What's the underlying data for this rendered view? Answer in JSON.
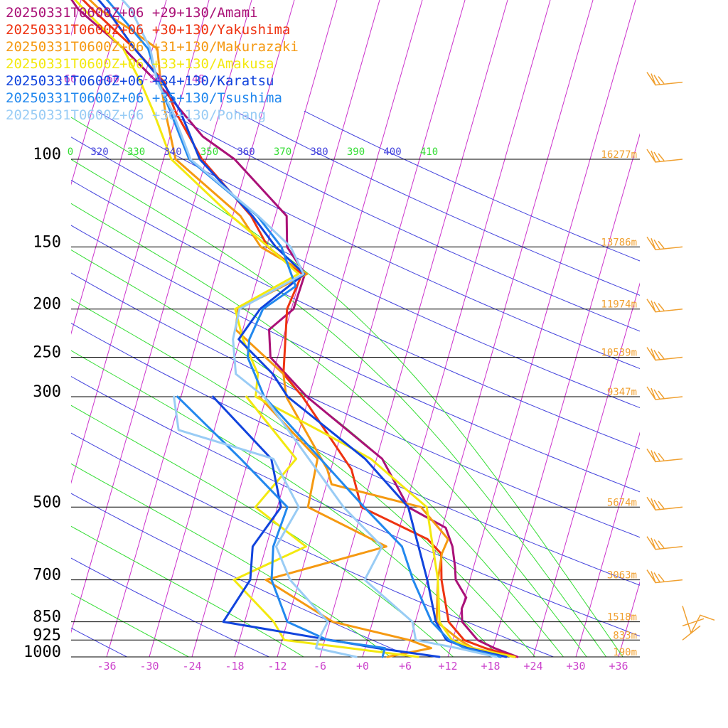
{
  "colors": {
    "isobar": "#000000",
    "isotherm": "#cc33cc",
    "isotherm_label": "#cc44cc",
    "dry_adiabat": "#4444dd",
    "moist_adiabat": "#33dd33",
    "height_label": "#f0a030",
    "wind_barb": "#f0a030"
  },
  "chart_data": {
    "type": "line",
    "title": "",
    "xlabel": "",
    "ylabel": "",
    "x_axis": {
      "unit": "degC",
      "skewed": true,
      "range": [
        -40,
        40
      ],
      "tick_labels": [
        "-36",
        "-30",
        "-24",
        "-18",
        "-12",
        "-6",
        "+0",
        "+6",
        "+12",
        "+18",
        "+24",
        "+30",
        "+36"
      ],
      "tick_values": [
        -36,
        -30,
        -24,
        -18,
        -12,
        -6,
        0,
        6,
        12,
        18,
        24,
        30,
        36
      ]
    },
    "y_axis": {
      "unit": "hPa",
      "scale": "log",
      "range": [
        1000,
        100
      ],
      "tick_labels": [
        "100",
        "150",
        "200",
        "250",
        "300",
        "500",
        "700",
        "850",
        "925",
        "1000"
      ],
      "tick_values": [
        100,
        150,
        200,
        250,
        300,
        500,
        700,
        850,
        925,
        1000
      ]
    },
    "upper_isotherm_labels": [
      "-66",
      "-60",
      "-54",
      "-48"
    ],
    "theta_labels": [
      "0",
      "320",
      "330",
      "340",
      "350",
      "360",
      "370",
      "380",
      "390",
      "400",
      "410"
    ],
    "height_labels": [
      {
        "p": 100,
        "text": "16277m"
      },
      {
        "p": 150,
        "text": "13786m"
      },
      {
        "p": 200,
        "text": "11974m"
      },
      {
        "p": 250,
        "text": "10539m"
      },
      {
        "p": 300,
        "text": "9347m"
      },
      {
        "p": 500,
        "text": "5674m"
      },
      {
        "p": 700,
        "text": "3063m"
      },
      {
        "p": 850,
        "text": "1518m"
      },
      {
        "p": 925,
        "text": "833m"
      },
      {
        "p": 1000,
        "text": "190m"
      }
    ],
    "legend": [
      "20250331T0600Z+06 +29+130/Amami",
      "20250331T0600Z+06 +30+130/Yakushima",
      "20250331T0600Z+06 +31+130/Makurazaki",
      "20250331T0600Z+06 +33+130/Amakusa",
      "20250331T0600Z+06 +34+130/Karatsu",
      "20250331T0600Z+06 +35+130/Tsushima",
      "20250331T0600Z+06 +36+130/Pohang"
    ],
    "series": [
      {
        "name": "Amami",
        "color": "#aa1177",
        "temperature": [
          [
            1000,
            21.8
          ],
          [
            960,
            18.2
          ],
          [
            925,
            15.5
          ],
          [
            850,
            12.6
          ],
          [
            800,
            12.0
          ],
          [
            760,
            12.2
          ],
          [
            700,
            10.0
          ],
          [
            660,
            9.4
          ],
          [
            600,
            8.2
          ],
          [
            550,
            6.5
          ],
          [
            500,
            0.4
          ],
          [
            400,
            -5.2
          ],
          [
            300,
            -18.3
          ],
          [
            250,
            -25.0
          ],
          [
            220,
            -26.3
          ],
          [
            200,
            -23.7
          ],
          [
            170,
            -23.5
          ],
          [
            150,
            -27.1
          ],
          [
            130,
            -28.4
          ],
          [
            100,
            -38.0
          ],
          [
            90,
            -43.4
          ],
          [
            70,
            -52.0
          ],
          [
            60,
            -58.0
          ],
          [
            50,
            -66.0
          ],
          [
            40,
            -72.6
          ],
          [
            30,
            -78.5
          ]
        ]
      },
      {
        "name": "Yakushima",
        "color": "#ee3311",
        "temperature": [
          [
            1000,
            21.5
          ],
          [
            960,
            16.9
          ],
          [
            925,
            13.6
          ],
          [
            850,
            10.7
          ],
          [
            700,
            8.0
          ],
          [
            620,
            6.9
          ],
          [
            580,
            4.4
          ],
          [
            500,
            -6.2
          ],
          [
            420,
            -9.1
          ],
          [
            300,
            -18.9
          ],
          [
            270,
            -22.5
          ],
          [
            200,
            -24.6
          ],
          [
            170,
            -23.9
          ],
          [
            150,
            -29.8
          ],
          [
            130,
            -33.4
          ],
          [
            100,
            -42.6
          ],
          [
            80,
            -48.3
          ],
          [
            70,
            -51.0
          ],
          [
            60,
            -56.5
          ],
          [
            50,
            -64.0
          ],
          [
            40,
            -72.7
          ],
          [
            30,
            -78.5
          ]
        ]
      },
      {
        "name": "Makurazaki",
        "color": "#f59911",
        "temperature": [
          [
            1000,
            21.3
          ],
          [
            960,
            15.2
          ],
          [
            925,
            13.0
          ],
          [
            850,
            9.0
          ],
          [
            700,
            7.5
          ],
          [
            620,
            7.0
          ],
          [
            580,
            7.3
          ],
          [
            500,
            2.2
          ],
          [
            450,
            -11.3
          ],
          [
            420,
            -12.5
          ],
          [
            300,
            -21.2
          ],
          [
            270,
            -22.5
          ],
          [
            220,
            -31.0
          ],
          [
            200,
            -31.5
          ],
          [
            170,
            -23.2
          ],
          [
            150,
            -30.8
          ],
          [
            130,
            -34.9
          ],
          [
            100,
            -46.3
          ],
          [
            80,
            -49.7
          ],
          [
            70,
            -51.5
          ],
          [
            60,
            -53.3
          ],
          [
            55,
            -57.7
          ],
          [
            50,
            -63.0
          ],
          [
            40,
            -72.0
          ],
          [
            30,
            -78.0
          ]
        ]
      },
      {
        "name": "Amakusa",
        "color": "#f3e90f",
        "temperature": [
          [
            1000,
            21.4
          ],
          [
            960,
            15.0
          ],
          [
            925,
            11.9
          ],
          [
            850,
            9.4
          ],
          [
            700,
            7.5
          ],
          [
            500,
            3.0
          ],
          [
            400,
            -6.8
          ],
          [
            360,
            -13.5
          ],
          [
            300,
            -25.5
          ],
          [
            270,
            -26.1
          ],
          [
            230,
            -29.6
          ],
          [
            200,
            -31.9
          ],
          [
            170,
            -24.4
          ],
          [
            150,
            -29.7
          ],
          [
            130,
            -36.2
          ],
          [
            100,
            -46.9
          ],
          [
            80,
            -51.4
          ],
          [
            70,
            -54.3
          ],
          [
            60,
            -58.1
          ],
          [
            50,
            -65.2
          ],
          [
            40,
            -73.4
          ],
          [
            30,
            -78.5
          ]
        ]
      },
      {
        "name": "Karatsu",
        "color": "#1144dd",
        "temperature": [
          [
            1000,
            20.2
          ],
          [
            960,
            14.4
          ],
          [
            925,
            11.1
          ],
          [
            850,
            8.9
          ],
          [
            700,
            6.0
          ],
          [
            500,
            0.4
          ],
          [
            400,
            -7.6
          ],
          [
            300,
            -21.0
          ],
          [
            270,
            -24.0
          ],
          [
            230,
            -30.2
          ],
          [
            200,
            -28.4
          ],
          [
            170,
            -23.6
          ],
          [
            150,
            -28.7
          ],
          [
            130,
            -33.2
          ],
          [
            100,
            -42.9
          ],
          [
            80,
            -47.6
          ],
          [
            70,
            -51.2
          ],
          [
            60,
            -56.5
          ],
          [
            50,
            -62.0
          ],
          [
            40,
            -69.7
          ],
          [
            30,
            -78.0
          ]
        ]
      },
      {
        "name": "Tsushima",
        "color": "#2288ee",
        "temperature": [
          [
            1000,
            19.4
          ],
          [
            960,
            14.0
          ],
          [
            925,
            11.5
          ],
          [
            850,
            8.3
          ],
          [
            700,
            4.0
          ],
          [
            600,
            1.1
          ],
          [
            500,
            -5.8
          ],
          [
            300,
            -24.3
          ],
          [
            250,
            -28.2
          ],
          [
            230,
            -28.7
          ],
          [
            200,
            -28.0
          ],
          [
            180,
            -24.3
          ],
          [
            150,
            -27.9
          ],
          [
            130,
            -32.5
          ],
          [
            100,
            -44.4
          ],
          [
            80,
            -49.0
          ],
          [
            70,
            -51.8
          ],
          [
            60,
            -54.6
          ],
          [
            50,
            -60.8
          ],
          [
            40,
            -68.6
          ],
          [
            30,
            -78.5
          ]
        ]
      },
      {
        "name": "Pohang",
        "color": "#99ccf5",
        "temperature": [
          [
            1000,
            18.8
          ],
          [
            960,
            13.0
          ],
          [
            925,
            6.8
          ],
          [
            850,
            5.6
          ],
          [
            700,
            -2.8
          ],
          [
            600,
            -1.7
          ],
          [
            500,
            -8.7
          ],
          [
            300,
            -24.3
          ],
          [
            270,
            -29.2
          ],
          [
            230,
            -31.0
          ],
          [
            200,
            -31.3
          ],
          [
            170,
            -23.7
          ],
          [
            150,
            -26.6
          ],
          [
            130,
            -32.4
          ],
          [
            100,
            -44.2
          ],
          [
            80,
            -48.7
          ],
          [
            70,
            -52.0
          ],
          [
            60,
            -54.3
          ],
          [
            50,
            -58.6
          ],
          [
            40,
            -66.5
          ],
          [
            30,
            -75.4
          ]
        ]
      }
    ],
    "dewpoint_series": [
      {
        "name": "Amami",
        "color": "#aa1177",
        "dewpoint": []
      },
      {
        "name": "Yakushima",
        "color": "#ee3311",
        "dewpoint": []
      },
      {
        "name": "Makurazaki",
        "color": "#f59911",
        "dewpoint": [
          [
            1000,
            3.5
          ],
          [
            960,
            9.3
          ],
          [
            925,
            5.9
          ],
          [
            850,
            -5.6
          ],
          [
            700,
            -16.7
          ],
          [
            600,
            -1.1
          ],
          [
            500,
            -13.7
          ],
          [
            400,
            -14.3
          ],
          [
            300,
            -25.0
          ]
        ]
      },
      {
        "name": "Amakusa",
        "color": "#f3e90f",
        "dewpoint": [
          [
            1000,
            7.8
          ],
          [
            960,
            -2.2
          ],
          [
            925,
            -11.7
          ],
          [
            850,
            -13.9
          ],
          [
            700,
            -21.2
          ],
          [
            600,
            -12.4
          ],
          [
            500,
            -21.1
          ],
          [
            400,
            -17.3
          ],
          [
            300,
            -26.8
          ]
        ]
      },
      {
        "name": "Karatsu",
        "color": "#1144dd",
        "dewpoint": [
          [
            1000,
            10.8
          ],
          [
            960,
            1.7
          ],
          [
            925,
            -5.2
          ],
          [
            850,
            -21.0
          ],
          [
            700,
            -18.9
          ],
          [
            600,
            -19.9
          ],
          [
            500,
            -17.5
          ],
          [
            400,
            -20.8
          ],
          [
            300,
            -31.5
          ]
        ]
      },
      {
        "name": "Tsushima",
        "color": "#2288ee",
        "dewpoint": [
          [
            1000,
            2.8
          ],
          [
            960,
            2.8
          ],
          [
            925,
            -5.6
          ],
          [
            850,
            -12.0
          ],
          [
            700,
            -15.9
          ],
          [
            600,
            -17.0
          ],
          [
            500,
            -16.6
          ],
          [
            400,
            -25.1
          ],
          [
            300,
            -36.5
          ]
        ]
      },
      {
        "name": "Pohang",
        "color": "#99ccf5",
        "dewpoint": [
          [
            1000,
            -0.9
          ],
          [
            960,
            -6.9
          ],
          [
            925,
            -6.9
          ],
          [
            850,
            -6.3
          ],
          [
            700,
            -13.3
          ],
          [
            600,
            -16.6
          ],
          [
            500,
            -15.0
          ],
          [
            400,
            -20.5
          ],
          [
            350,
            -35.0
          ],
          [
            300,
            -37.0
          ]
        ]
      }
    ],
    "wind_barbs": [
      {
        "p": 30
      },
      {
        "p": 70
      },
      {
        "p": 100
      },
      {
        "p": 150
      },
      {
        "p": 200
      },
      {
        "p": 250
      },
      {
        "p": 300
      },
      {
        "p": 400
      },
      {
        "p": 500
      },
      {
        "p": 600
      },
      {
        "p": 700
      },
      {
        "p": 925
      }
    ]
  }
}
